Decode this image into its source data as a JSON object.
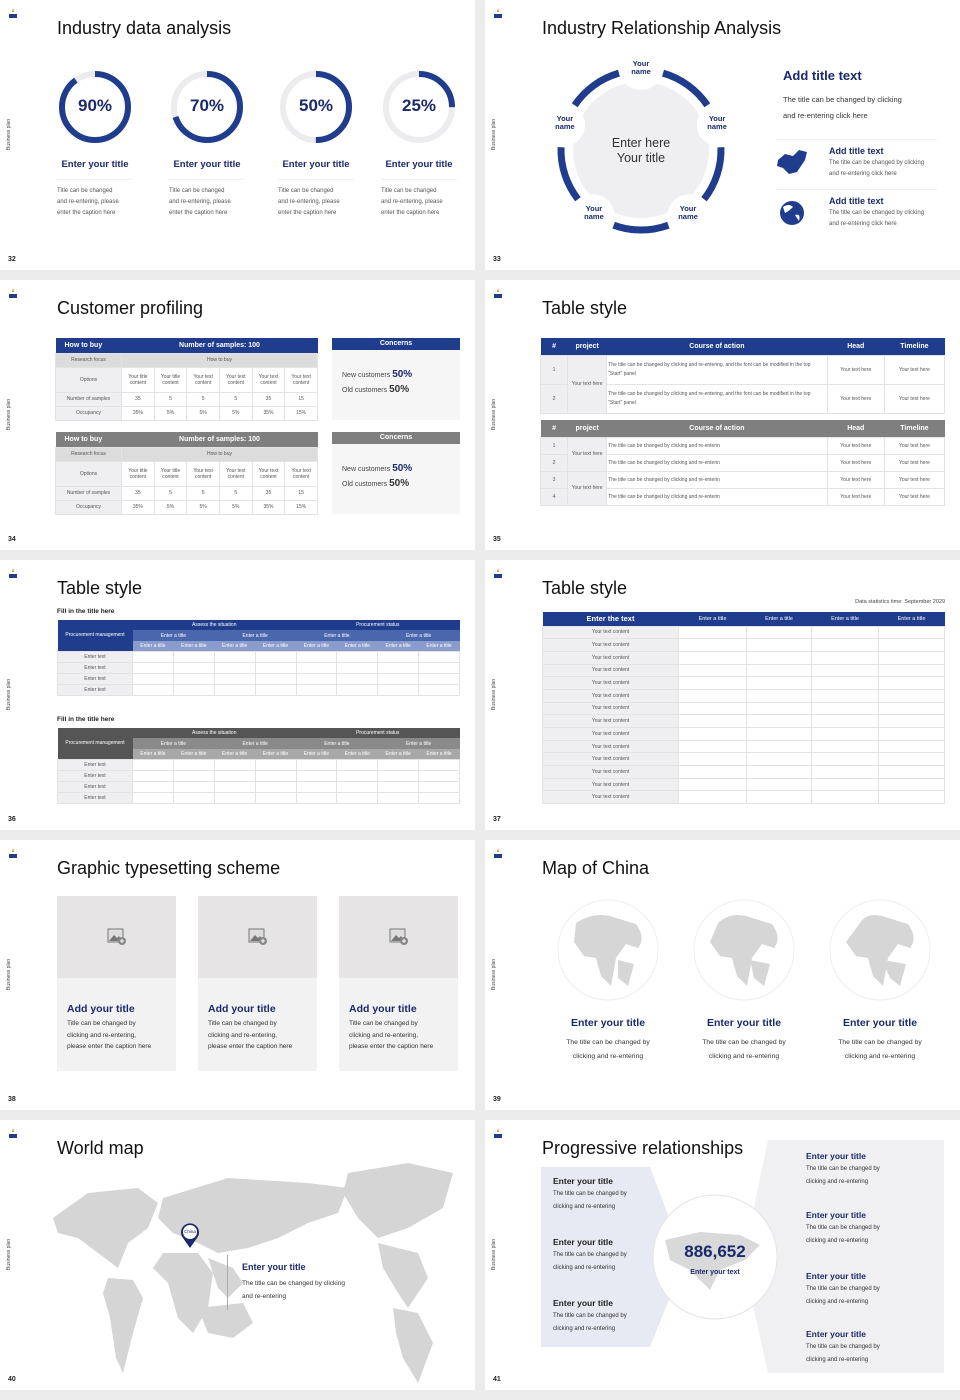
{
  "common": {
    "side_label": "Business plan"
  },
  "colors": {
    "navy": "#1f3d8c",
    "gray_header": "#7f7f7f",
    "panel": "#efeff1",
    "lavender": "#e8eaf3"
  },
  "s32": {
    "num": "32",
    "title": "Industry data analysis",
    "items": [
      {
        "value": 90,
        "label": "90%",
        "title": "Enter your title",
        "caption": [
          "Title can be changed",
          "and re-entering, please",
          "enter the caption here"
        ]
      },
      {
        "value": 70,
        "label": "70%",
        "title": "Enter your title",
        "caption": [
          "Title can be changed",
          "and re-entering, please",
          "enter the caption here"
        ]
      },
      {
        "value": 50,
        "label": "50%",
        "title": "Enter your title",
        "caption": [
          "Title can be changed",
          "and re-entering, please",
          "enter the caption here"
        ]
      },
      {
        "value": 25,
        "label": "25%",
        "title": "Enter your title",
        "caption": [
          "Title can be changed",
          "and re-entering, please",
          "enter the caption here"
        ]
      }
    ]
  },
  "s33": {
    "num": "33",
    "title": "Industry Relationship Analysis",
    "names": [
      "Your name",
      "Your name",
      "Your name",
      "Your name",
      "Your name"
    ],
    "center": [
      "Enter here",
      "Your title"
    ],
    "main_title": "Add title text",
    "main_text": [
      "The title can be changed by clicking",
      "and re-entering click here"
    ],
    "items": [
      {
        "icon": "china-map-icon",
        "title": "Add title text",
        "text": [
          "The title can be changed by clicking",
          "and re-entering click here"
        ]
      },
      {
        "icon": "globe-icon",
        "title": "Add title text",
        "text": [
          "The title can be changed by clicking",
          "and re-entering click here"
        ]
      }
    ]
  },
  "s34": {
    "num": "34",
    "title": "Customer profiling",
    "table": {
      "head": [
        "How to buy",
        "Number of samples: 100"
      ],
      "research": [
        "Research focus",
        "How to buy"
      ],
      "rows": [
        [
          "Options",
          "Your title content",
          "Your title content",
          "Your text content",
          "Your text content",
          "Your text content",
          "Your text content"
        ],
        [
          "Number of samples",
          "35",
          "5",
          "5",
          "5",
          "35",
          "15"
        ],
        [
          "Occupancy",
          "35%",
          "5%",
          "5%",
          "5%",
          "35%",
          "15%"
        ]
      ]
    },
    "concerns": {
      "title": "Concerns",
      "new_label": "New customers",
      "new_value": "50%",
      "old_label": "Old customers",
      "old_value": "50%"
    }
  },
  "s35": {
    "num": "35",
    "title": "Table style",
    "headers": [
      "#",
      "project",
      "Course of action",
      "Head",
      "Timeline"
    ],
    "t1": {
      "project": "Your text here",
      "rows": [
        [
          "1",
          "The title can be changed by clicking and re-entering, and the font can be modified in the top \"Start\" panel",
          "Your text here",
          "Your text here"
        ],
        [
          "2",
          "The title can be changed by clicking and re-entering, and the font can be modified in the top \"Start\" panel",
          "Your text here",
          "Your text here"
        ]
      ]
    },
    "t2": {
      "projects": [
        "Your text here",
        "Your text here"
      ],
      "rows": [
        [
          "1",
          "The title can be changed by clicking and re-enterin",
          "Your text here",
          "Your text here"
        ],
        [
          "2",
          "The title can be changed by clicking and re-enterin",
          "Your text here",
          "Your text here"
        ],
        [
          "3",
          "The title can be changed by clicking and re-enterin",
          "Your text here",
          "Your text here"
        ],
        [
          "4",
          "The title can be changed by clicking and re-enterin",
          "Your text here",
          "Your text here"
        ]
      ]
    }
  },
  "s36": {
    "num": "36",
    "title": "Table style",
    "subtitle": "Fill in the title here",
    "corner": "Procurement management",
    "groups": [
      "Assess the situation",
      "Procurement status"
    ],
    "sub": [
      "Enter a title",
      "Enter a title",
      "Enter a title",
      "Enter a title"
    ],
    "subsub": [
      "Enter a title",
      "Enter a title",
      "Enter a title",
      "Enter a title",
      "Enter a title",
      "Enter a title",
      "Enter a title",
      "Enter a title"
    ],
    "rows": [
      "Enter text",
      "Enter text",
      "Enter text",
      "Enter text"
    ]
  },
  "s37": {
    "num": "37",
    "title": "Table style",
    "stat": "Data statistics time: September 2029",
    "headers": [
      "Enter the text",
      "Enter a title",
      "Enter a title",
      "Enter a title",
      "Enter a title"
    ],
    "rows": [
      "Your text content",
      "Your text content",
      "Your text content",
      "Your text content",
      "Your text content",
      "Your text content",
      "Your text content",
      "Your text content",
      "Your text content",
      "Your text content",
      "Your text content",
      "Your text content",
      "Your text content",
      "Your text content"
    ]
  },
  "s38": {
    "num": "38",
    "title": "Graphic typesetting scheme",
    "cards": [
      {
        "title": "Add your title",
        "text": [
          "Title can be changed by",
          "clicking and re-entering,",
          "please enter the caption here"
        ]
      },
      {
        "title": "Add your title",
        "text": [
          "Title can be changed by",
          "clicking and re-entering,",
          "please enter the caption here"
        ]
      },
      {
        "title": "Add your title",
        "text": [
          "Title can be changed by",
          "clicking and re-entering,",
          "please enter the caption here"
        ]
      }
    ]
  },
  "s39": {
    "num": "39",
    "title": "Map of China",
    "items": [
      {
        "title": "Enter your title",
        "text": [
          "The title can be changed by",
          "clicking and re-entering"
        ]
      },
      {
        "title": "Enter your title",
        "text": [
          "The title can be changed by",
          "clicking and re-entering"
        ]
      },
      {
        "title": "Enter your title",
        "text": [
          "The title can be changed by",
          "clicking and re-entering"
        ]
      }
    ]
  },
  "s40": {
    "num": "40",
    "title": "World map",
    "pin": "China",
    "item_title": "Enter your title",
    "item_text": [
      "The title can be changed by clicking",
      "and re-entering"
    ]
  },
  "s41": {
    "num": "41",
    "title": "Progressive relationships",
    "number": "886,652",
    "number_label": "Enter your text",
    "left": [
      {
        "title": "Enter your title",
        "text": [
          "The title can be changed by",
          "clicking and re-entering"
        ]
      },
      {
        "title": "Enter your title",
        "text": [
          "The title can be changed by",
          "clicking and re-entering"
        ]
      },
      {
        "title": "Enter your title",
        "text": [
          "The title can be changed by",
          "clicking and re-entering"
        ]
      }
    ],
    "right": [
      {
        "title": "Enter your title",
        "text": [
          "The title can be changed by",
          "clicking and re-entering"
        ]
      },
      {
        "title": "Enter your title",
        "text": [
          "The title can be changed by",
          "clicking and re-entering"
        ]
      },
      {
        "title": "Enter your title",
        "text": [
          "The title can be changed by",
          "clicking and re-entering"
        ]
      },
      {
        "title": "Enter your title",
        "text": [
          "The title can be changed by",
          "clicking and re-entering"
        ]
      }
    ]
  }
}
